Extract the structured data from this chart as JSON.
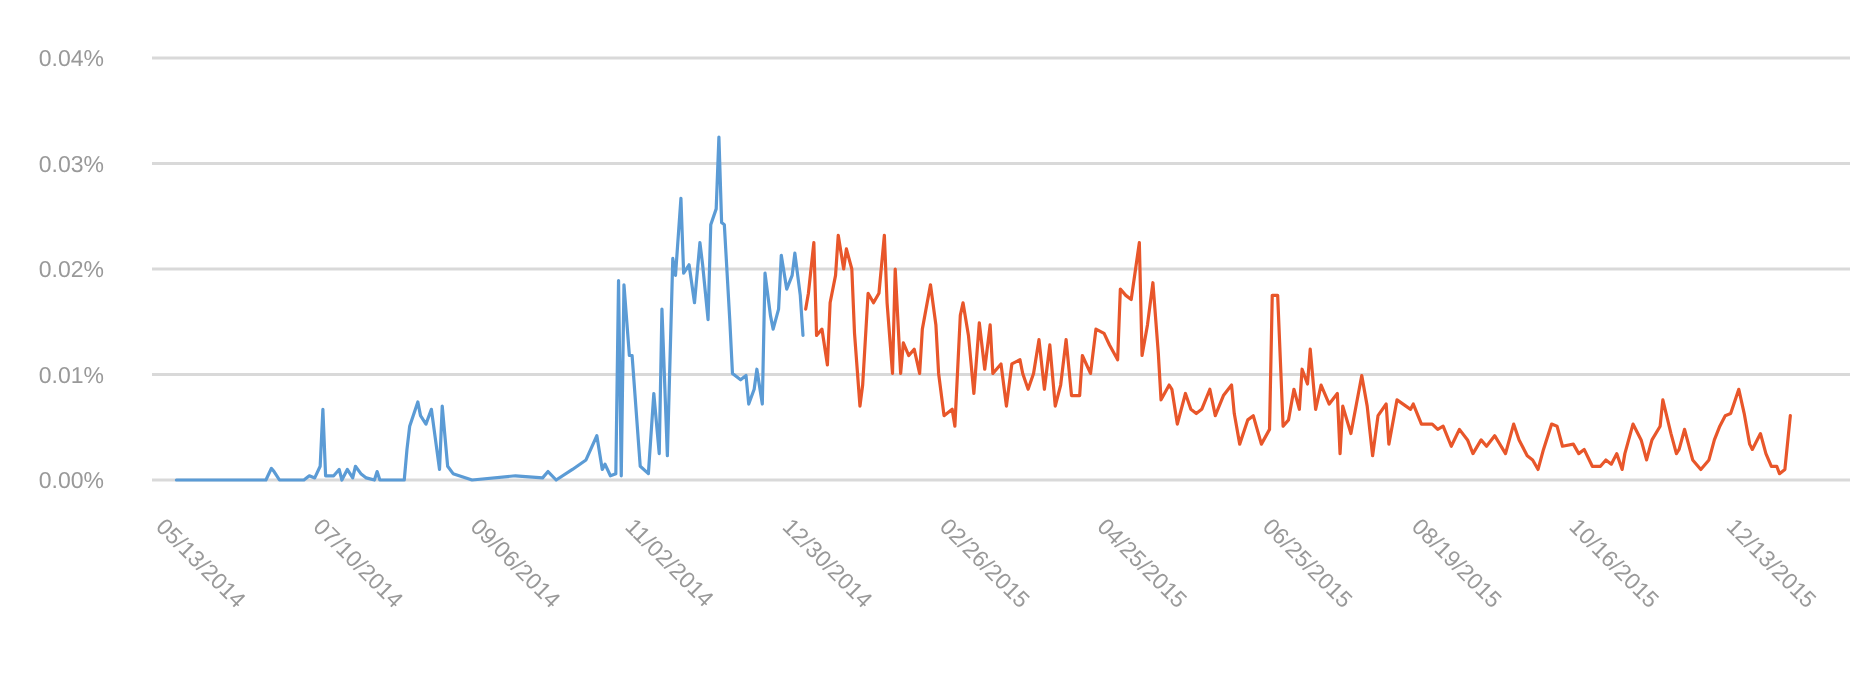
{
  "chart_data": {
    "type": "line",
    "grid": "y",
    "xlim": [
      "2014-05-12",
      "2016-01-28"
    ],
    "xticks": [
      {
        "value": "2014-05-13",
        "label": "05/13/2014"
      },
      {
        "value": "2014-07-10",
        "label": "07/10/2014"
      },
      {
        "value": "2014-09-06",
        "label": "09/06/2014"
      },
      {
        "value": "2014-11-02",
        "label": "11/02/2014"
      },
      {
        "value": "2014-12-30",
        "label": "12/30/2014"
      },
      {
        "value": "2015-02-26",
        "label": "02/26/2015"
      },
      {
        "value": "2015-04-25",
        "label": "04/25/2015"
      },
      {
        "value": "2015-06-25",
        "label": "06/25/2015"
      },
      {
        "value": "2015-08-19",
        "label": "08/19/2015"
      },
      {
        "value": "2015-10-16",
        "label": "10/16/2015"
      },
      {
        "value": "2015-12-13",
        "label": "12/13/2015"
      }
    ],
    "ylim": [
      0,
      0.04
    ],
    "yticks": [
      {
        "value": 0,
        "label": "0.00%"
      },
      {
        "value": 0.01,
        "label": "0.01%"
      },
      {
        "value": 0.02,
        "label": "0.02%"
      },
      {
        "value": 0.03,
        "label": "0.03%"
      },
      {
        "value": 0.04,
        "label": "0.04%"
      }
    ],
    "series": [
      {
        "color": "#5b9bd5",
        "x": [
          "2014-05-21",
          "2014-06-23",
          "2014-06-25",
          "2014-06-26",
          "2014-06-28",
          "2014-07-07",
          "2014-07-09",
          "2014-07-11",
          "2014-07-13",
          "2014-07-14",
          "2014-07-15",
          "2014-07-18",
          "2014-07-20",
          "2014-07-21",
          "2014-07-23",
          "2014-07-25",
          "2014-07-26",
          "2014-07-28",
          "2014-07-30",
          "2014-08-02",
          "2014-08-03",
          "2014-08-04",
          "2014-08-13",
          "2014-08-14",
          "2014-08-15",
          "2014-08-18",
          "2014-08-19",
          "2014-08-21",
          "2014-08-23",
          "2014-08-24",
          "2014-08-26",
          "2014-08-27",
          "2014-08-29",
          "2014-08-31",
          "2014-09-07",
          "2014-09-23",
          "2014-10-03",
          "2014-10-05",
          "2014-10-08",
          "2014-10-14",
          "2014-10-19",
          "2014-10-23",
          "2014-10-25",
          "2014-10-26",
          "2014-10-28",
          "2014-10-30",
          "2014-10-31",
          "2014-11-01",
          "2014-11-02",
          "2014-11-04",
          "2014-11-05",
          "2014-11-08",
          "2014-11-11",
          "2014-11-13",
          "2014-11-15",
          "2014-11-16",
          "2014-11-18",
          "2014-11-20",
          "2014-11-21",
          "2014-11-23",
          "2014-11-24",
          "2014-11-26",
          "2014-11-28",
          "2014-11-30",
          "2014-12-01",
          "2014-12-03",
          "2014-12-04",
          "2014-12-06",
          "2014-12-07",
          "2014-12-08",
          "2014-12-09",
          "2014-12-11",
          "2014-12-12",
          "2014-12-15",
          "2014-12-17",
          "2014-12-18",
          "2014-12-20",
          "2014-12-21",
          "2014-12-23",
          "2014-12-24",
          "2014-12-26",
          "2014-12-27",
          "2014-12-29",
          "2014-12-30",
          "2015-01-01",
          "2015-01-03",
          "2015-01-04",
          "2015-01-06",
          "2015-01-07"
        ],
        "values": [
          0,
          0,
          0.0011,
          0.0008,
          0,
          0,
          0.0004,
          0.0002,
          0.0013,
          0.0067,
          0.0004,
          0.0004,
          0.001,
          0,
          0.001,
          0.0002,
          0.0013,
          0.0006,
          0.0002,
          0,
          0.0008,
          0,
          0,
          0.0029,
          0.0051,
          0.0074,
          0.0061,
          0.0053,
          0.0067,
          0.0048,
          0.001,
          0.007,
          0.0013,
          0.0006,
          0,
          0.0004,
          0.0002,
          0.0008,
          0,
          0.001,
          0.0019,
          0.0042,
          0.001,
          0.0015,
          0.0004,
          0.0006,
          0.0189,
          0.0004,
          0.0185,
          0.0118,
          0.0118,
          0.0013,
          0.0006,
          0.0082,
          0.0025,
          0.0162,
          0.0023,
          0.021,
          0.0194,
          0.0267,
          0.0196,
          0.0204,
          0.0168,
          0.0225,
          0.0204,
          0.0152,
          0.0242,
          0.0257,
          0.0325,
          0.0244,
          0.0242,
          0.0152,
          0.0101,
          0.0095,
          0.0099,
          0.0072,
          0.0086,
          0.0105,
          0.0072,
          0.0196,
          0.0156,
          0.0143,
          0.0162,
          0.0213,
          0.0181,
          0.0194,
          0.0215,
          0.0175,
          0.0137
        ]
      },
      {
        "color": "#e8562a",
        "x": [
          "2015-01-08",
          "2015-01-09",
          "2015-01-11",
          "2015-01-12",
          "2015-01-14",
          "2015-01-16",
          "2015-01-17",
          "2015-01-19",
          "2015-01-20",
          "2015-01-22",
          "2015-01-23",
          "2015-01-25",
          "2015-01-26",
          "2015-01-28",
          "2015-01-29",
          "2015-01-31",
          "2015-02-02",
          "2015-02-04",
          "2015-02-06",
          "2015-02-07",
          "2015-02-09",
          "2015-02-10",
          "2015-02-12",
          "2015-02-13",
          "2015-02-15",
          "2015-02-17",
          "2015-02-19",
          "2015-02-20",
          "2015-02-23",
          "2015-02-25",
          "2015-02-26",
          "2015-02-28",
          "2015-03-03",
          "2015-03-04",
          "2015-03-06",
          "2015-03-07",
          "2015-03-09",
          "2015-03-11",
          "2015-03-13",
          "2015-03-15",
          "2015-03-17",
          "2015-03-18",
          "2015-03-21",
          "2015-03-23",
          "2015-03-25",
          "2015-03-28",
          "2015-03-29",
          "2015-03-31",
          "2015-04-02",
          "2015-04-04",
          "2015-04-06",
          "2015-04-08",
          "2015-04-10",
          "2015-04-12",
          "2015-04-14",
          "2015-04-16",
          "2015-04-19",
          "2015-04-20",
          "2015-04-23",
          "2015-04-25",
          "2015-04-28",
          "2015-04-30",
          "2015-05-03",
          "2015-05-04",
          "2015-05-06",
          "2015-05-08",
          "2015-05-11",
          "2015-05-12",
          "2015-05-14",
          "2015-05-16",
          "2015-05-18",
          "2015-05-19",
          "2015-05-22",
          "2015-05-23",
          "2015-05-25",
          "2015-05-28",
          "2015-05-30",
          "2015-06-01",
          "2015-06-03",
          "2015-06-06",
          "2015-06-08",
          "2015-06-11",
          "2015-06-14",
          "2015-06-15",
          "2015-06-17",
          "2015-06-20",
          "2015-06-22",
          "2015-06-25",
          "2015-06-28",
          "2015-06-29",
          "2015-07-01",
          "2015-07-03",
          "2015-07-05",
          "2015-07-07",
          "2015-07-09",
          "2015-07-10",
          "2015-07-12",
          "2015-07-13",
          "2015-07-15",
          "2015-07-17",
          "2015-07-20",
          "2015-07-23",
          "2015-07-24",
          "2015-07-25",
          "2015-07-28",
          "2015-08-01",
          "2015-08-03",
          "2015-08-05",
          "2015-08-07",
          "2015-08-10",
          "2015-08-11",
          "2015-08-14",
          "2015-08-19",
          "2015-08-20",
          "2015-08-23",
          "2015-08-27",
          "2015-08-29",
          "2015-08-31",
          "2015-09-03",
          "2015-09-06",
          "2015-09-09",
          "2015-09-11",
          "2015-09-14",
          "2015-09-16",
          "2015-09-19",
          "2015-09-23",
          "2015-09-26",
          "2015-09-28",
          "2015-10-01",
          "2015-10-03",
          "2015-10-05",
          "2015-10-07",
          "2015-10-10",
          "2015-10-12",
          "2015-10-14",
          "2015-10-18",
          "2015-10-20",
          "2015-10-22",
          "2015-10-25",
          "2015-10-28",
          "2015-10-30",
          "2015-11-01",
          "2015-11-03",
          "2015-11-05",
          "2015-11-06",
          "2015-11-09",
          "2015-11-12",
          "2015-11-14",
          "2015-11-16",
          "2015-11-19",
          "2015-11-20",
          "2015-11-23",
          "2015-11-25",
          "2015-11-26",
          "2015-11-28",
          "2015-12-01",
          "2015-12-04",
          "2015-12-07",
          "2015-12-09",
          "2015-12-11",
          "2015-12-13",
          "2015-12-15",
          "2015-12-18",
          "2015-12-20",
          "2015-12-22",
          "2015-12-23",
          "2015-12-26",
          "2015-12-28",
          "2015-12-30",
          "2016-01-01",
          "2016-01-02",
          "2016-01-04",
          "2016-01-06"
        ],
        "values": [
          0.0162,
          0.0177,
          0.0225,
          0.0137,
          0.0143,
          0.0109,
          0.0168,
          0.0194,
          0.0232,
          0.02,
          0.0219,
          0.02,
          0.0139,
          0.007,
          0.009,
          0.0177,
          0.0168,
          0.0177,
          0.0232,
          0.0168,
          0.0101,
          0.02,
          0.0101,
          0.013,
          0.0118,
          0.0124,
          0.0101,
          0.0143,
          0.0185,
          0.0147,
          0.0101,
          0.0061,
          0.0067,
          0.0051,
          0.0156,
          0.0168,
          0.0137,
          0.0082,
          0.0149,
          0.0105,
          0.0147,
          0.0101,
          0.011,
          0.007,
          0.011,
          0.0114,
          0.0101,
          0.0086,
          0.0101,
          0.0133,
          0.0086,
          0.0128,
          0.007,
          0.009,
          0.0133,
          0.008,
          0.008,
          0.0118,
          0.0101,
          0.0143,
          0.0139,
          0.0128,
          0.0114,
          0.0181,
          0.0175,
          0.0171,
          0.0225,
          0.0118,
          0.0147,
          0.0187,
          0.012,
          0.0076,
          0.009,
          0.0086,
          0.0053,
          0.0082,
          0.0067,
          0.0063,
          0.0067,
          0.0086,
          0.0061,
          0.008,
          0.009,
          0.0063,
          0.0034,
          0.0057,
          0.0061,
          0.0034,
          0.0048,
          0.0175,
          0.0175,
          0.0051,
          0.0057,
          0.0086,
          0.0067,
          0.0105,
          0.0091,
          0.0124,
          0.0067,
          0.009,
          0.0072,
          0.0082,
          0.0025,
          0.007,
          0.0044,
          0.0099,
          0.007,
          0.0023,
          0.0061,
          0.0072,
          0.0034,
          0.0076,
          0.0067,
          0.0072,
          0.0053,
          0.0053,
          0.0048,
          0.0051,
          0.0032,
          0.0048,
          0.0038,
          0.0025,
          0.0038,
          0.0032,
          0.0042,
          0.0025,
          0.0053,
          0.0038,
          0.0023,
          0.0019,
          0.001,
          0.0029,
          0.0053,
          0.0051,
          0.0032,
          0.0034,
          0.0025,
          0.0029,
          0.0013,
          0.0013,
          0.0019,
          0.0015,
          0.0025,
          0.001,
          0.0025,
          0.0053,
          0.0038,
          0.0019,
          0.0038,
          0.0051,
          0.0076,
          0.0044,
          0.0025,
          0.0029,
          0.0048,
          0.0019,
          0.001,
          0.0019,
          0.0038,
          0.0051,
          0.0061,
          0.0063,
          0.0086,
          0.0063,
          0.0034,
          0.0029,
          0.0044,
          0.0025,
          0.0013,
          0.0013,
          0.0006,
          0.001,
          0.0061
        ]
      }
    ]
  }
}
